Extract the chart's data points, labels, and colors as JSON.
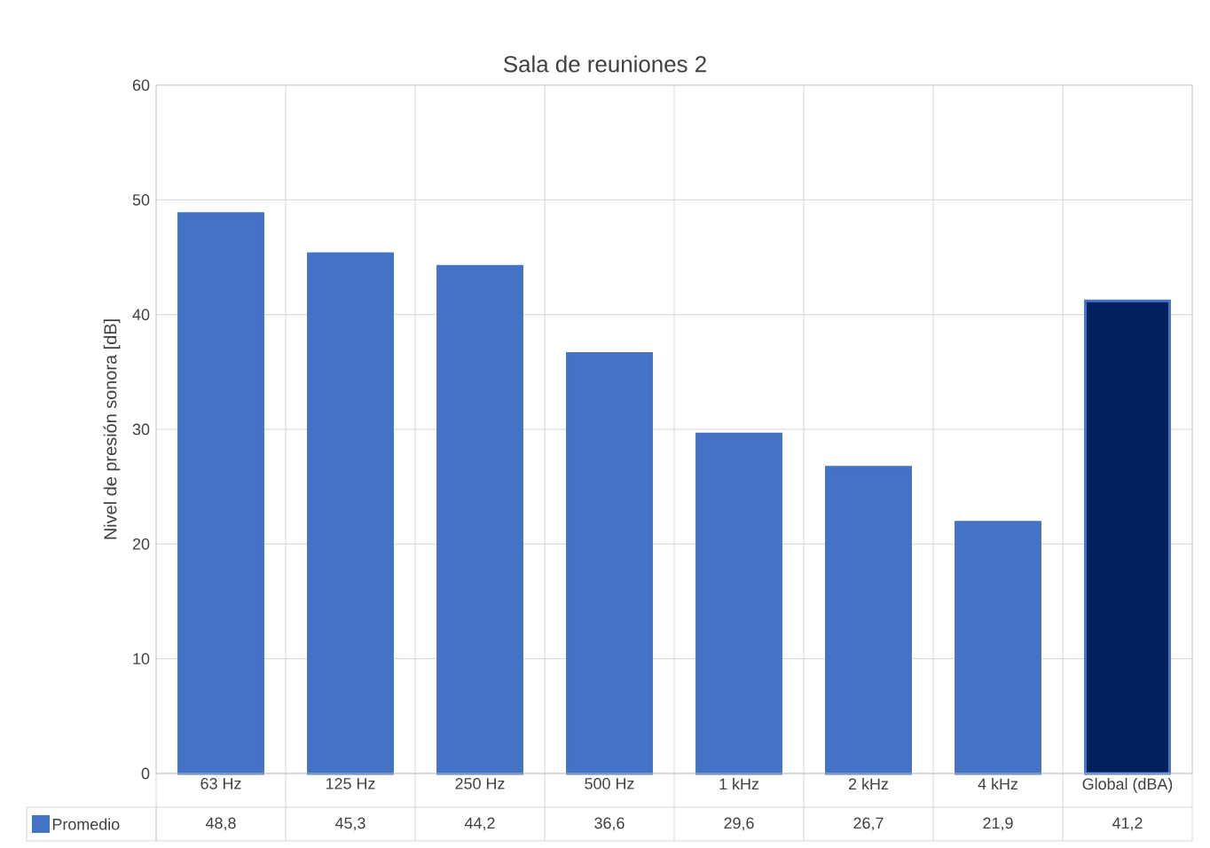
{
  "chart_data": {
    "type": "bar",
    "title": "Sala de reuniones 2",
    "ylabel": "Nivel de presión sonora [dB]",
    "categories": [
      "63 Hz",
      "125 Hz",
      "250 Hz",
      "500 Hz",
      "1 kHz",
      "2 kHz",
      "4 kHz",
      "Global (dBA)"
    ],
    "series": [
      {
        "name": "Promedio",
        "color": "#4472c4",
        "colors": [
          "#4472c4",
          "#4472c4",
          "#4472c4",
          "#4472c4",
          "#4472c4",
          "#4472c4",
          "#4472c4",
          "#002060"
        ],
        "values": [
          48.8,
          45.3,
          44.2,
          36.6,
          29.6,
          26.7,
          21.9,
          41.2
        ],
        "value_labels": [
          "48,8",
          "45,3",
          "44,2",
          "36,6",
          "29,6",
          "26,7",
          "21,9",
          "41,2"
        ]
      }
    ],
    "ylim": [
      0,
      60
    ],
    "yticks": [
      0,
      10,
      20,
      30,
      40,
      50,
      60
    ],
    "grid": true,
    "legend": "bottom"
  }
}
